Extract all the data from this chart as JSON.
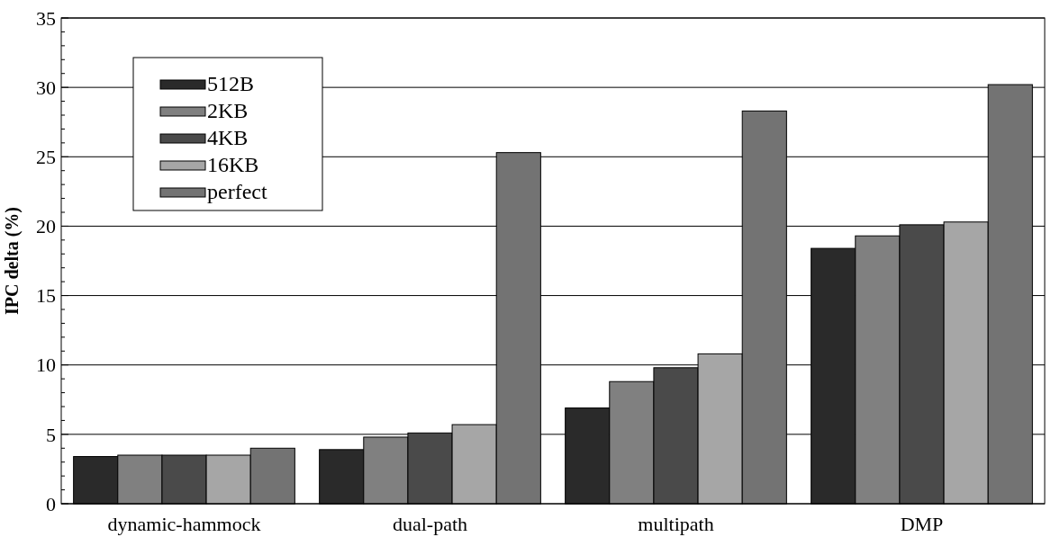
{
  "chart_data": {
    "type": "bar",
    "ylabel": "IPC delta (%)",
    "categories": [
      "dynamic-hammock",
      "dual-path",
      "multipath",
      "DMP"
    ],
    "series": [
      {
        "name": "512B",
        "color": "#2a2a2a",
        "values": [
          3.4,
          3.9,
          6.9,
          18.4
        ]
      },
      {
        "name": "2KB",
        "color": "#808080",
        "values": [
          3.5,
          4.8,
          8.8,
          19.3
        ]
      },
      {
        "name": "4KB",
        "color": "#4a4a4a",
        "values": [
          3.5,
          5.1,
          9.8,
          20.1
        ]
      },
      {
        "name": "16KB",
        "color": "#a6a6a6",
        "values": [
          3.5,
          5.7,
          10.8,
          20.3
        ]
      },
      {
        "name": "perfect",
        "color": "#737373",
        "values": [
          4.0,
          25.3,
          28.3,
          30.2
        ]
      }
    ],
    "ylim": [
      0,
      35
    ],
    "yticks": [
      0,
      {
        "value": 1,
        "label": null
      },
      {
        "value": 2,
        "label": null
      },
      {
        "value": 3,
        "label": null
      },
      {
        "value": 4,
        "label": null
      },
      5,
      {
        "value": 6,
        "label": null
      },
      {
        "value": 7,
        "label": null
      },
      {
        "value": 8,
        "label": null
      },
      {
        "value": 9,
        "label": null
      },
      10,
      {
        "value": 11,
        "label": null
      },
      {
        "value": 12,
        "label": null
      },
      {
        "value": 13,
        "label": null
      },
      {
        "value": 14,
        "label": null
      },
      15,
      {
        "value": 16,
        "label": null
      },
      {
        "value": 17,
        "label": null
      },
      {
        "value": 18,
        "label": null
      },
      {
        "value": 19,
        "label": null
      },
      20,
      {
        "value": 21,
        "label": null
      },
      {
        "value": 22,
        "label": null
      },
      {
        "value": 23,
        "label": null
      },
      {
        "value": 24,
        "label": null
      },
      25,
      {
        "value": 26,
        "label": null
      },
      {
        "value": 27,
        "label": null
      },
      {
        "value": 28,
        "label": null
      },
      {
        "value": 29,
        "label": null
      },
      30,
      {
        "value": 31,
        "label": null
      },
      {
        "value": 32,
        "label": null
      },
      {
        "value": 33,
        "label": null
      },
      {
        "value": 34,
        "label": null
      },
      35
    ],
    "grid": "y",
    "legend": "top left"
  }
}
